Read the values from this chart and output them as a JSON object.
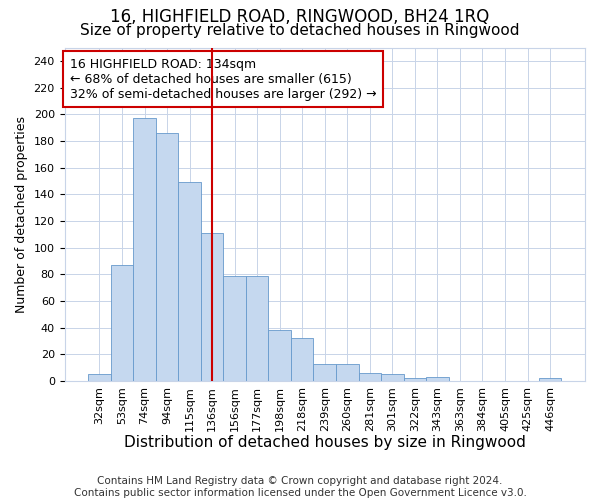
{
  "title": "16, HIGHFIELD ROAD, RINGWOOD, BH24 1RQ",
  "subtitle": "Size of property relative to detached houses in Ringwood",
  "xlabel": "Distribution of detached houses by size in Ringwood",
  "ylabel": "Number of detached properties",
  "bar_color": "#c5d8ef",
  "bar_edgecolor": "#6699cc",
  "vline_color": "#cc0000",
  "annotation_line1": "16 HIGHFIELD ROAD: 134sqm",
  "annotation_line2": "← 68% of detached houses are smaller (615)",
  "annotation_line3": "32% of semi-detached houses are larger (292) →",
  "annotation_box_edgecolor": "#cc0000",
  "categories": [
    "32sqm",
    "53sqm",
    "74sqm",
    "94sqm",
    "115sqm",
    "136sqm",
    "156sqm",
    "177sqm",
    "198sqm",
    "218sqm",
    "239sqm",
    "260sqm",
    "281sqm",
    "301sqm",
    "322sqm",
    "343sqm",
    "363sqm",
    "384sqm",
    "405sqm",
    "425sqm",
    "446sqm"
  ],
  "values": [
    5,
    87,
    197,
    186,
    149,
    111,
    79,
    79,
    38,
    32,
    13,
    13,
    6,
    5,
    2,
    3,
    0,
    0,
    0,
    0,
    2
  ],
  "ylim": [
    0,
    250
  ],
  "yticks": [
    0,
    20,
    40,
    60,
    80,
    100,
    120,
    140,
    160,
    180,
    200,
    220,
    240
  ],
  "vline_index": 5,
  "footer_line1": "Contains HM Land Registry data © Crown copyright and database right 2024.",
  "footer_line2": "Contains public sector information licensed under the Open Government Licence v3.0.",
  "bg_color": "#ffffff",
  "grid_color": "#c8d4e8",
  "title_fontsize": 12,
  "subtitle_fontsize": 11,
  "xlabel_fontsize": 11,
  "ylabel_fontsize": 9,
  "footer_fontsize": 7.5,
  "tick_fontsize": 8
}
